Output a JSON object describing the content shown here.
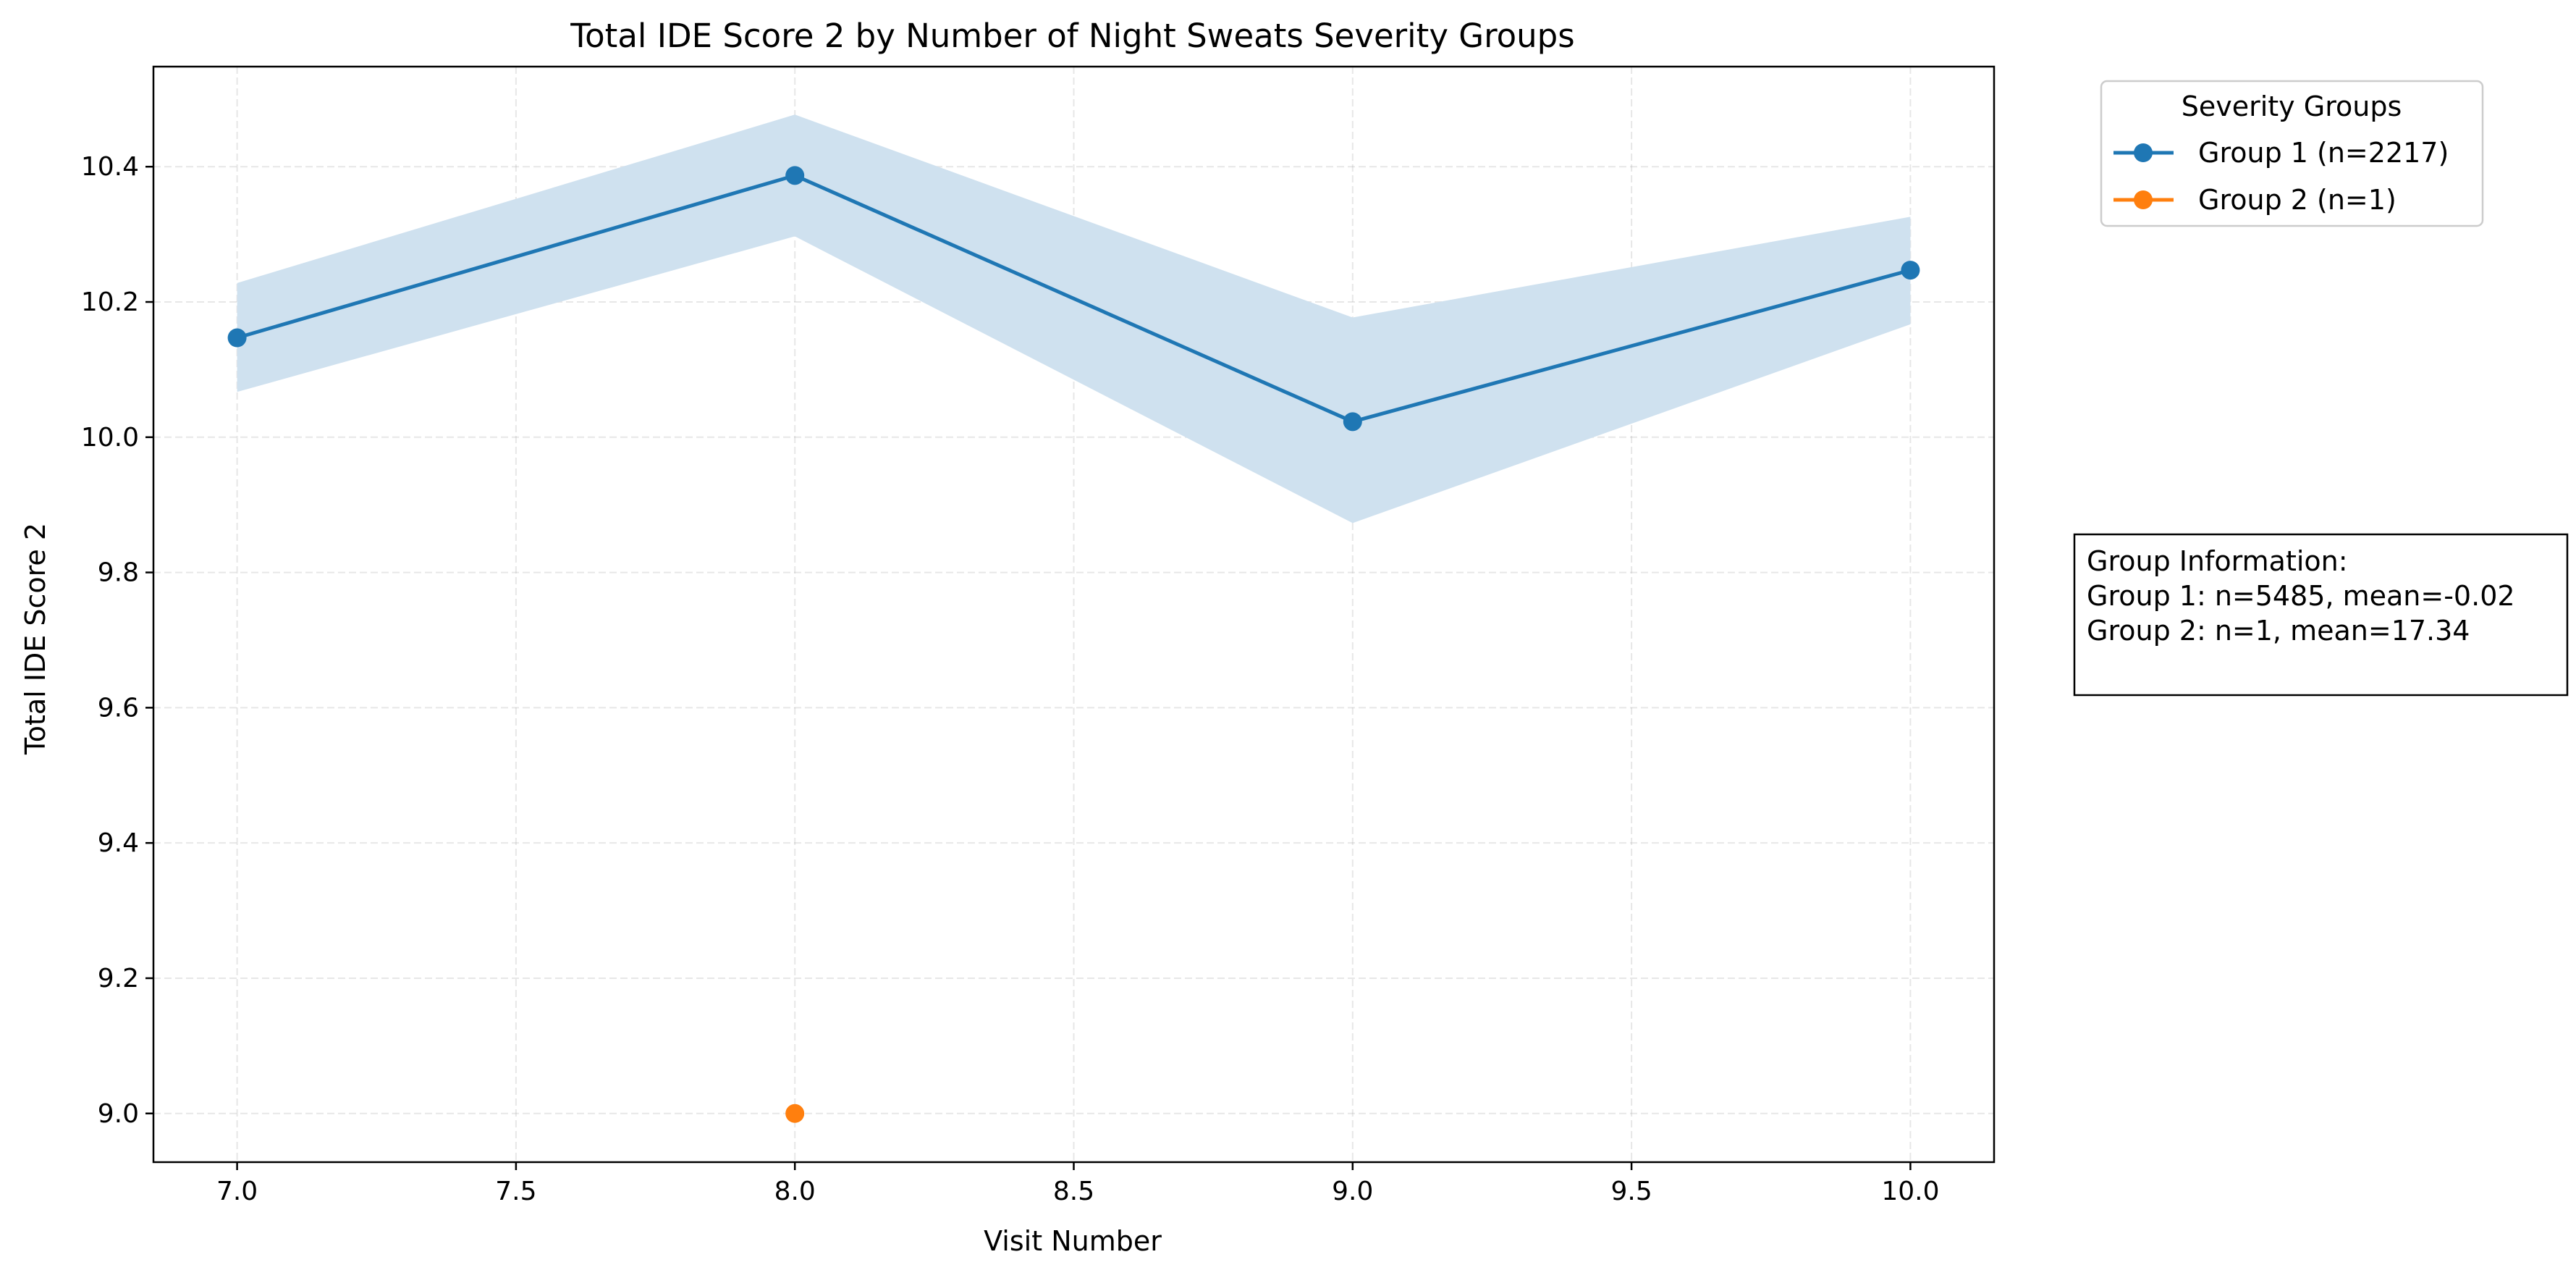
{
  "chart_data": {
    "type": "line",
    "title": "Total IDE Score 2 by Number of Night Sweats Severity Groups",
    "xlabel": "Visit Number",
    "ylabel": "Total IDE Score 2",
    "xlim": [
      6.85,
      10.15
    ],
    "ylim": [
      8.928,
      10.548
    ],
    "x_ticks": [
      7.0,
      7.5,
      8.0,
      8.5,
      9.0,
      9.5,
      10.0
    ],
    "x_tick_labels": [
      "7.0",
      "7.5",
      "8.0",
      "8.5",
      "9.0",
      "9.5",
      "10.0"
    ],
    "y_ticks": [
      9.0,
      9.2,
      9.4,
      9.6,
      9.8,
      10.0,
      10.2,
      10.4
    ],
    "y_tick_labels": [
      "9.0",
      "9.2",
      "9.4",
      "9.6",
      "9.8",
      "10.0",
      "10.2",
      "10.4"
    ],
    "grid": true,
    "legend_title": "Severity Groups",
    "legend_position": "outside top-right",
    "series": [
      {
        "name": "Group 1 (n=2217)",
        "color": "#1f77b4",
        "x": [
          7.0,
          8.0,
          9.0,
          10.0
        ],
        "y": [
          10.147,
          10.387,
          10.023,
          10.247
        ],
        "ci_lower": [
          10.067,
          10.297,
          9.873,
          10.167
        ],
        "ci_upper": [
          10.228,
          10.477,
          10.177,
          10.326
        ],
        "band_color": "#cfe1ef"
      },
      {
        "name": "Group 2 (n=1)",
        "color": "#ff7f0e",
        "x": [
          8.0
        ],
        "y": [
          9.0
        ]
      }
    ],
    "annotation": {
      "lines": [
        "Group Information:",
        "Group 1: n=5485, mean=-0.02",
        "Group 2: n=1, mean=17.34"
      ]
    }
  }
}
